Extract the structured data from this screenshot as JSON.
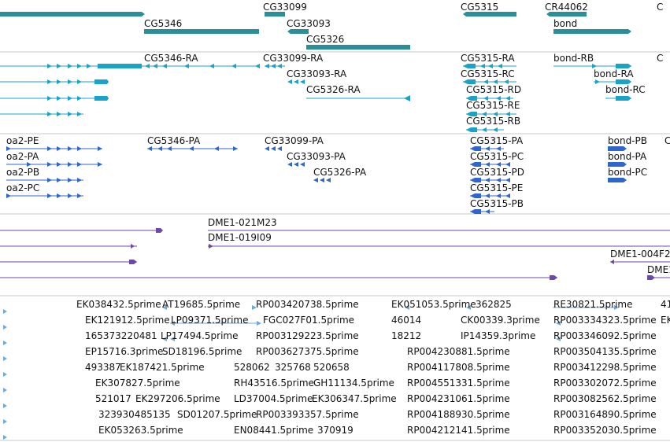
{
  "colors": {
    "gene": "#2a8f99",
    "transcript_cyan": "#1aa3c8",
    "transcript_blue": "#2f66cc",
    "clone": "#6b49a8",
    "est": "#6fa8dc",
    "separator": "#c8c8c8",
    "text": "#111111"
  },
  "tracks": {
    "gene_labels": [
      "CG33099",
      "CG5315",
      "CR44062",
      "C",
      "CG5346",
      "CG33093",
      "bond",
      "CG5326"
    ],
    "transcripts_ra_labels": [
      "CG5346-RA",
      "CG33099-RA",
      "CG5315-RA",
      "bond-RB",
      "C",
      "CG33093-RA",
      "CG5315-RC",
      "bond-RA",
      "CG5326-RA",
      "CG5315-RD",
      "bond-RC",
      "CG5315-RE",
      "CG5315-RB"
    ],
    "transcripts_pa_labels": [
      "oa2-PE",
      "CG5346-PA",
      "CG33099-PA",
      "CG5315-PA",
      "bond-PB",
      "C",
      "oa2-PA",
      "CG33093-PA",
      "CG5315-PC",
      "bond-PA",
      "oa2-PB",
      "CG5326-PA",
      "CG5315-PD",
      "bond-PC",
      "oa2-PC",
      "CG5315-PE",
      "CG5315-PB"
    ],
    "clone_labels": [
      "DME1-021M23",
      "DME1-019I09",
      "DME1-004F2",
      "DME1"
    ],
    "est_labels": [
      "EK038432.5prime",
      "AT19685.5prime",
      "RP003420738.5prime",
      "EK051053.5prime",
      "362825",
      "RE30821.5prime",
      "41",
      "EK121912.5prime",
      "LP09371.5prime",
      "FGC027F01.5prime",
      "46014",
      "CK00339.3prime",
      "RP003334323.5prime",
      "EK",
      "165373220481",
      "LP17494.5prime",
      "RP003129223.5prime",
      "18212",
      "IP14359.3prime",
      "RP003346092.5prime",
      "EP15716.3prime",
      "SD18196.5prime",
      "RP003627375.5prime",
      "RP004230881.5prime",
      "RP003504135.5prime",
      "493387",
      "EK187421.5prime",
      "528062",
      "325768",
      "520658",
      "RP004117808.5prime",
      "RP003412298.5prime",
      "EK307827.5prime",
      "RH43516.5prime",
      "GH11134.5prime",
      "RP004551331.5prime",
      "RP003302072.5prime",
      "521017",
      "EK297206.5prime",
      "LD37004.5prime",
      "EK306347.5prime",
      "RP004231061.5prime",
      "RP003082562.5prime",
      "323930485135",
      "SD01207.5prime",
      "RP003393357.5prime",
      "RP004188930.5prime",
      "RP003164890.5prime",
      "EK053263.5prime",
      "EN08441.5prime",
      "370919",
      "RP004212141.5prime",
      "RP003352030.5prime"
    ]
  }
}
